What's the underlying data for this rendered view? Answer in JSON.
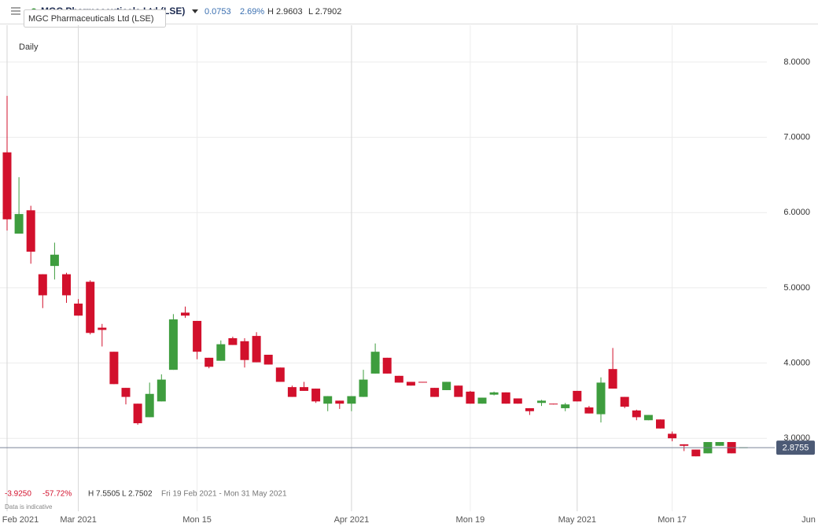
{
  "header": {
    "title": "MGC Pharmaceuticals Ltd (LSE)",
    "tooltip": "MGC Pharmaceuticals Ltd (LSE)",
    "change": "0.0753",
    "change_pct": "2.69%",
    "high": "H 2.9603",
    "low": "L 2.7902"
  },
  "summary": {
    "change": "-3.9250",
    "change_pct": "-57.72%",
    "high": "H 7.5505",
    "low": "L 2.7502",
    "range": "Fri 19 Feb 2021 - Mon 31 May 2021",
    "note": "Data is indicative"
  },
  "chart_data": {
    "type": "candlestick",
    "interval": "Daily",
    "categories": [
      "Feb 2021",
      null,
      null,
      null,
      null,
      null,
      "Mar 2021",
      null,
      null,
      null,
      null,
      null,
      null,
      null,
      null,
      null,
      "Mon 15",
      null,
      null,
      null,
      null,
      null,
      null,
      null,
      null,
      null,
      null,
      null,
      null,
      "Apr 2021",
      null,
      null,
      null,
      null,
      null,
      null,
      null,
      null,
      null,
      "Mon 19",
      null,
      null,
      null,
      null,
      null,
      null,
      null,
      null,
      "May 2021",
      null,
      null,
      null,
      null,
      null,
      null,
      null,
      "Mon 17",
      null,
      null,
      null,
      null,
      null,
      null,
      null,
      null,
      null,
      null,
      null,
      "Jun"
    ],
    "up_color": "#3e9d3e",
    "down_color": "#d2102c",
    "open": [
      6.8,
      5.72,
      6.03,
      5.18,
      5.29,
      5.18,
      4.79,
      5.08,
      4.47,
      4.15,
      3.67,
      3.46,
      3.28,
      3.49,
      3.91,
      4.67,
      4.56,
      4.07,
      4.03,
      4.33,
      4.29,
      4.36,
      4.11,
      3.94,
      3.68,
      3.68,
      3.66,
      3.46,
      3.5,
      3.46,
      3.55,
      3.86,
      4.07,
      3.83,
      3.75,
      3.75,
      3.67,
      3.64,
      3.7,
      3.62,
      3.46,
      3.58,
      3.61,
      3.53,
      3.4,
      3.47,
      3.46,
      3.4,
      3.63,
      3.41,
      3.32,
      3.92,
      3.55,
      3.37,
      3.24,
      3.25,
      3.06,
      2.92,
      2.85,
      2.8,
      2.9,
      2.95,
      2.88,
      null,
      null,
      null,
      null,
      null,
      null
    ],
    "high": [
      7.55,
      6.47,
      6.09,
      5.18,
      5.6,
      5.2,
      4.85,
      5.1,
      4.52,
      4.15,
      3.67,
      3.46,
      3.74,
      3.85,
      4.65,
      4.75,
      4.56,
      4.07,
      4.3,
      4.35,
      4.33,
      4.41,
      4.11,
      3.94,
      3.7,
      3.75,
      3.66,
      3.56,
      3.5,
      3.56,
      3.91,
      4.26,
      4.07,
      3.83,
      3.75,
      3.75,
      3.67,
      3.75,
      3.7,
      3.63,
      3.54,
      3.62,
      3.61,
      3.53,
      3.4,
      3.51,
      3.46,
      3.47,
      3.63,
      3.43,
      3.81,
      4.2,
      3.55,
      3.38,
      3.31,
      3.25,
      3.09,
      2.92,
      2.85,
      2.95,
      2.95,
      2.95,
      2.88,
      null,
      null,
      null,
      null,
      null,
      null
    ],
    "low": [
      5.76,
      5.72,
      5.32,
      4.73,
      5.11,
      4.8,
      4.63,
      4.38,
      4.22,
      3.72,
      3.45,
      3.18,
      3.28,
      3.49,
      3.91,
      4.6,
      4.05,
      3.93,
      4.03,
      4.24,
      3.94,
      4.01,
      3.98,
      3.75,
      3.55,
      3.63,
      3.47,
      3.36,
      3.39,
      3.36,
      3.55,
      3.86,
      3.86,
      3.74,
      3.7,
      3.74,
      3.55,
      3.64,
      3.55,
      3.46,
      3.46,
      3.57,
      3.46,
      3.46,
      3.31,
      3.43,
      3.45,
      3.36,
      3.49,
      3.33,
      3.21,
      3.66,
      3.4,
      3.24,
      3.24,
      3.13,
      2.96,
      2.83,
      2.76,
      2.8,
      2.9,
      2.8,
      2.88,
      null,
      null,
      null,
      null,
      null,
      null
    ],
    "close": [
      5.91,
      5.98,
      5.48,
      4.9,
      5.44,
      4.9,
      4.63,
      4.4,
      4.44,
      3.72,
      3.55,
      3.2,
      3.59,
      3.78,
      4.58,
      4.63,
      4.15,
      3.95,
      4.25,
      4.24,
      4.04,
      4.01,
      3.98,
      3.75,
      3.55,
      3.63,
      3.49,
      3.56,
      3.46,
      3.56,
      3.78,
      4.15,
      3.86,
      3.74,
      3.7,
      3.74,
      3.55,
      3.75,
      3.55,
      3.46,
      3.54,
      3.61,
      3.46,
      3.46,
      3.36,
      3.5,
      3.45,
      3.45,
      3.49,
      3.33,
      3.74,
      3.66,
      3.42,
      3.28,
      3.31,
      3.13,
      3.0,
      2.9,
      2.76,
      2.95,
      2.95,
      2.8,
      2.88,
      null,
      null,
      null,
      null,
      null,
      null
    ],
    "last_price": {
      "value": 2.8755,
      "label": "2.8755"
    },
    "ylim": [
      2.03,
      8.49
    ],
    "yticks": [
      {
        "value": 3,
        "label": "3.0000"
      },
      {
        "value": 4,
        "label": "4.0000"
      },
      {
        "value": 5,
        "label": "5.0000"
      },
      {
        "value": 6,
        "label": "6.0000"
      },
      {
        "value": 7,
        "label": "7.0000"
      },
      {
        "value": 8,
        "label": "8.0000"
      }
    ],
    "grid": true
  }
}
